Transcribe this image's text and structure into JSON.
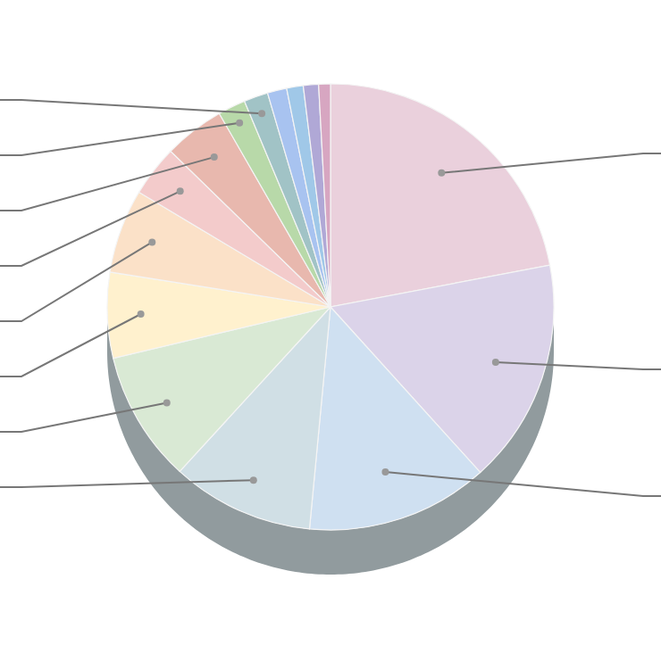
{
  "chart_data": {
    "type": "pie",
    "categories": [
      null,
      null,
      null,
      null,
      null,
      null,
      null,
      null,
      null,
      null,
      null,
      null,
      null,
      null,
      null
    ],
    "values": [
      22,
      16.3,
      13.2,
      10.3,
      9.5,
      6.2,
      6.1,
      3.7,
      4.4,
      2,
      1.75,
      1.4,
      1.2,
      1.1,
      0.85
    ],
    "colors": [
      "#ead0dc",
      "#dbd3e9",
      "#cfe0f1",
      "#d0dfe5",
      "#d9e9d4",
      "#fff1ce",
      "#fbe1c8",
      "#f3cbcb",
      "#e8b8ae",
      "#b8d9a9",
      "#a1c3c6",
      "#a8c3f0",
      "#a0c8e8",
      "#b0a8d6",
      "#d7a6c1"
    ]
  }
}
